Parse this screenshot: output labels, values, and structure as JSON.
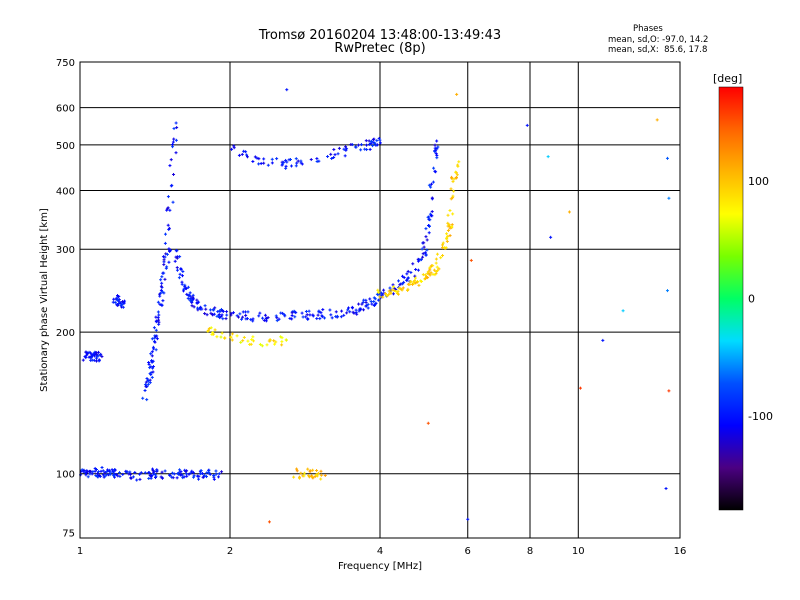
{
  "header": {
    "title_line1": "Tromsø 20160204 13:48:00-13:49:43",
    "title_line2": "RwPretec (8p)",
    "stats_title": "Phases",
    "stats_o": "mean, sd,O: -97.0, 14.2",
    "stats_x": "mean, sd,X:  85.6, 17.8"
  },
  "colorbar": {
    "unit_label": "[deg]",
    "ticks": [
      {
        "value": 100,
        "label": "100"
      },
      {
        "value": 0,
        "label": "0"
      },
      {
        "value": -100,
        "label": "-100"
      }
    ],
    "range": [
      -180,
      180
    ],
    "stops": [
      "#000000",
      "#4b0082",
      "#0000ff",
      "#0050ff",
      "#00dcff",
      "#00ff64",
      "#78ff00",
      "#ffff00",
      "#ffb400",
      "#ff6400",
      "#ff0000"
    ]
  },
  "chart_data": {
    "type": "scatter",
    "title": "Tromsø 20160204 13:48:00-13:49:43",
    "subtitle": "RwPretec (8p)",
    "xlabel": "Frequency [MHz]",
    "ylabel": "Stationary phase Virtual Height [km]",
    "x_scale": "log",
    "y_scale": "log",
    "xlim": [
      1,
      16
    ],
    "ylim": [
      73,
      750
    ],
    "x_ticks": [
      1,
      2,
      4,
      6,
      8,
      10,
      16
    ],
    "y_ticks": [
      75,
      100,
      200,
      300,
      400,
      500,
      600,
      750
    ],
    "grid": true,
    "color_encodes": "phase [deg]",
    "traces": [
      {
        "x": [
          1.0,
          1.05,
          1.1,
          1.15,
          1.2,
          1.3,
          1.4,
          1.5,
          1.6,
          1.7,
          1.8,
          1.9
        ],
        "y": [
          100,
          100,
          101,
          100,
          100,
          99,
          100,
          100,
          100,
          99,
          100,
          99
        ],
        "phase": -100
      },
      {
        "x": [
          1.02,
          1.05,
          1.08,
          1.1
        ],
        "y": [
          178,
          177,
          178,
          177
        ],
        "phase": -100
      },
      {
        "x": [
          1.18,
          1.2,
          1.22
        ],
        "y": [
          236,
          232,
          228
        ],
        "phase": -100
      },
      {
        "x": [
          1.35,
          1.38,
          1.4,
          1.42,
          1.45,
          1.47,
          1.5,
          1.52,
          1.55
        ],
        "y": [
          145,
          160,
          180,
          200,
          230,
          260,
          300,
          400,
          550
        ],
        "phase": -100
      },
      {
        "x": [
          1.55,
          1.6,
          1.65,
          1.7,
          1.8,
          1.9,
          2.0,
          2.2,
          2.5,
          2.8,
          3.0,
          3.3,
          3.6,
          3.8,
          4.0,
          4.3,
          4.6,
          4.9,
          5.0,
          5.1,
          5.2
        ],
        "y": [
          300,
          260,
          240,
          230,
          222,
          219,
          217,
          216,
          216,
          217,
          218,
          220,
          224,
          230,
          238,
          250,
          265,
          290,
          340,
          430,
          500
        ],
        "phase": -100
      },
      {
        "x": [
          2.0,
          2.3,
          2.6,
          3.0,
          3.5,
          3.8,
          4.0
        ],
        "y": [
          490,
          460,
          455,
          465,
          490,
          500,
          510
        ],
        "phase": -100
      },
      {
        "x": [
          4.0,
          4.3,
          4.6,
          4.9,
          5.1,
          5.3,
          5.5,
          5.6,
          5.7
        ],
        "y": [
          240,
          245,
          252,
          260,
          270,
          290,
          330,
          400,
          460
        ],
        "phase": 95
      },
      {
        "x": [
          1.8,
          2.0,
          2.3,
          2.6
        ],
        "y": [
          200,
          195,
          190,
          192
        ],
        "phase": 80
      },
      {
        "x": [
          2.7,
          2.9,
          3.1
        ],
        "y": [
          100,
          100,
          99
        ],
        "phase": 100
      }
    ],
    "scattered_points": [
      {
        "x": 2.6,
        "y": 655,
        "phase": -100
      },
      {
        "x": 5.7,
        "y": 640,
        "phase": 110
      },
      {
        "x": 7.9,
        "y": 550,
        "phase": -100
      },
      {
        "x": 8.7,
        "y": 472,
        "phase": -40
      },
      {
        "x": 9.6,
        "y": 360,
        "phase": 110
      },
      {
        "x": 8.8,
        "y": 318,
        "phase": -100
      },
      {
        "x": 15.1,
        "y": 468,
        "phase": -70
      },
      {
        "x": 15.2,
        "y": 385,
        "phase": -60
      },
      {
        "x": 15.1,
        "y": 245,
        "phase": -60
      },
      {
        "x": 12.3,
        "y": 222,
        "phase": -40
      },
      {
        "x": 11.2,
        "y": 192,
        "phase": -100
      },
      {
        "x": 10.1,
        "y": 152,
        "phase": 160
      },
      {
        "x": 15.2,
        "y": 150,
        "phase": 160
      },
      {
        "x": 15.0,
        "y": 93,
        "phase": -100
      },
      {
        "x": 6.0,
        "y": 80,
        "phase": -100
      },
      {
        "x": 5.0,
        "y": 128,
        "phase": 150
      },
      {
        "x": 14.4,
        "y": 565,
        "phase": 110
      },
      {
        "x": 6.1,
        "y": 284,
        "phase": 150
      },
      {
        "x": 2.4,
        "y": 79,
        "phase": 150
      }
    ]
  }
}
